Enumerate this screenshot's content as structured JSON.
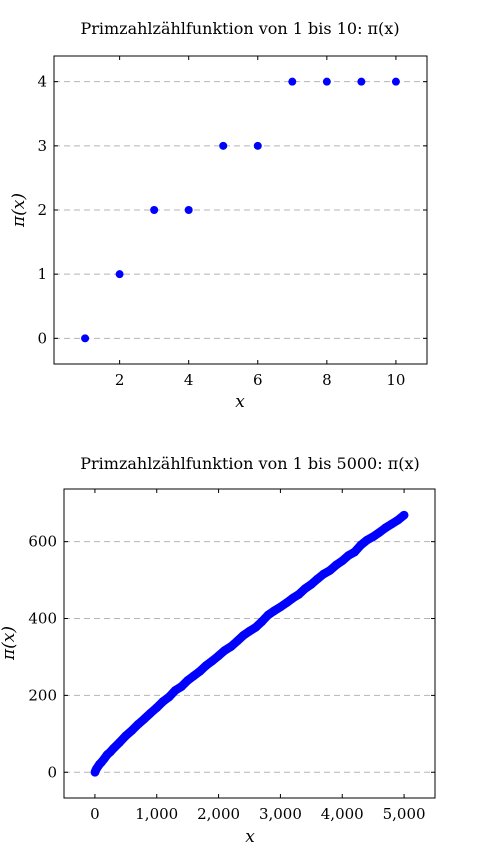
{
  "chart_data": [
    {
      "type": "scatter",
      "title": "Primzahlzählfunktion von 1 bis 10: π(x)",
      "xlabel": "x",
      "ylabel": "π(x)",
      "xlim": [
        0.1,
        10.9
      ],
      "ylim": [
        -0.4,
        4.4
      ],
      "grid": "horizontal-dashed",
      "x_ticks": [
        2,
        4,
        6,
        8,
        10
      ],
      "x_tick_labels": [
        "2",
        "4",
        "6",
        "8",
        "10"
      ],
      "y_ticks": [
        0,
        1,
        2,
        3,
        4
      ],
      "y_tick_labels": [
        "0",
        "1",
        "2",
        "3",
        "4"
      ],
      "color": "#0000ff",
      "x": [
        1,
        2,
        3,
        4,
        5,
        6,
        7,
        8,
        9,
        10
      ],
      "y": [
        0,
        1,
        2,
        2,
        3,
        3,
        4,
        4,
        4,
        4
      ]
    },
    {
      "type": "scatter",
      "title": "Primzahlzählfunktion von 1 bis 5000: π(x)",
      "xlabel": "x",
      "ylabel": "π(x)",
      "xlim": [
        -500,
        5500
      ],
      "ylim": [
        -67,
        737
      ],
      "grid": "horizontal-dashed",
      "x_ticks": [
        0,
        1000,
        2000,
        3000,
        4000,
        5000
      ],
      "x_tick_labels": [
        "0",
        "1,000",
        "2,000",
        "3,000",
        "4,000",
        "5,000"
      ],
      "y_ticks": [
        0,
        200,
        400,
        600
      ],
      "y_tick_labels": [
        "0",
        "200",
        "400",
        "600"
      ],
      "color": "#0000ff",
      "x": [
        1,
        10,
        25,
        50,
        75,
        100,
        150,
        200,
        250,
        300,
        400,
        500,
        600,
        700,
        800,
        900,
        1000,
        1100,
        1200,
        1300,
        1400,
        1500,
        1600,
        1700,
        1800,
        1900,
        2000,
        2100,
        2200,
        2300,
        2400,
        2500,
        2600,
        2700,
        2800,
        2900,
        3000,
        3100,
        3200,
        3300,
        3400,
        3500,
        3600,
        3700,
        3800,
        3900,
        4000,
        4100,
        4200,
        4300,
        4400,
        4500,
        4600,
        4700,
        4800,
        4900,
        5000
      ],
      "y": [
        0,
        4,
        9,
        15,
        21,
        25,
        35,
        46,
        53,
        62,
        78,
        95,
        109,
        125,
        139,
        154,
        168,
        184,
        196,
        213,
        223,
        239,
        251,
        263,
        278,
        290,
        303,
        317,
        327,
        341,
        356,
        367,
        377,
        392,
        409,
        420,
        430,
        441,
        453,
        463,
        478,
        489,
        503,
        516,
        525,
        539,
        550,
        564,
        573,
        591,
        604,
        613,
        624,
        636,
        646,
        656,
        669
      ]
    }
  ]
}
